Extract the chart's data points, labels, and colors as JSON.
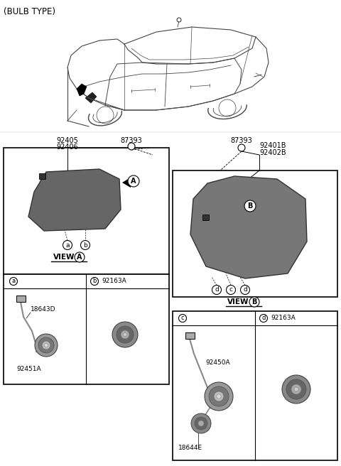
{
  "title": "(BULB TYPE)",
  "background": "#ffffff",
  "labels": {
    "left_part_numbers_top": "92405",
    "left_part_numbers_bot": "92406",
    "left_screw_label": "87393",
    "right_screw_label": "87393",
    "right_part_top": "92401B",
    "right_part_bot": "92402B",
    "view_a": "VIEW",
    "view_b": "VIEW",
    "box_a_left_label": "a",
    "box_a_right_label": "b",
    "box_a_right_part": "92163A",
    "box_a_left_part1": "18643D",
    "box_a_left_part2": "92451A",
    "box_b_left_label": "c",
    "box_b_right_label": "d",
    "box_b_right_part": "92163A",
    "box_b_left_part1": "92450A",
    "box_b_left_part2": "18644E",
    "circle_A": "A",
    "circle_B": "B"
  },
  "colors": {
    "black": "#000000",
    "dark_gray": "#444444",
    "mid_gray": "#777777",
    "light_gray": "#aaaaaa",
    "lamp_dark": "#555555",
    "lamp_mid": "#888888",
    "lamp_light": "#bbbbbb",
    "box_fill": "#ffffff"
  },
  "layout": {
    "fig_w": 4.8,
    "fig_h": 6.56,
    "dpi": 100
  }
}
